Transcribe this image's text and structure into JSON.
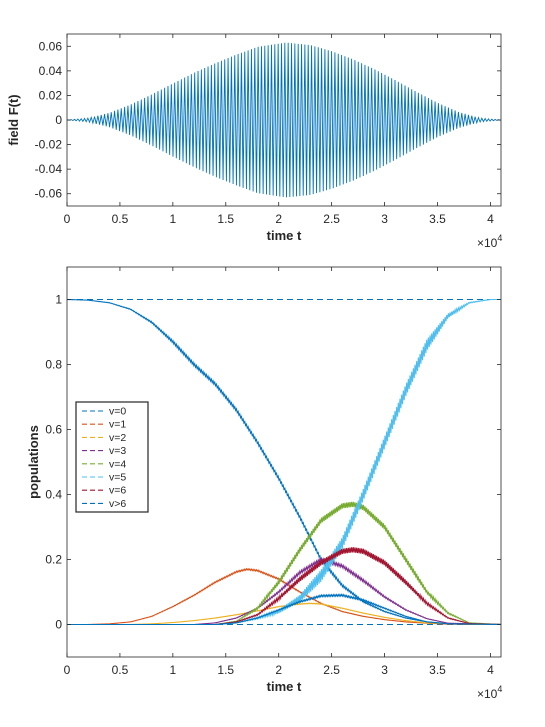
{
  "chart_data": [
    {
      "type": "line",
      "title": "",
      "xlabel": "time t",
      "ylabel": "field F(t)",
      "xlim": [
        0,
        41000
      ],
      "ylim": [
        -0.07,
        0.07
      ],
      "x_ticks": [
        0,
        5000,
        10000,
        15000,
        20000,
        25000,
        30000,
        35000,
        40000
      ],
      "x_tick_labels": [
        "0",
        "0.5",
        "1",
        "1.5",
        "2",
        "2.5",
        "3",
        "3.5",
        "4"
      ],
      "x_exponent_base": "×10",
      "x_exponent_power": "4",
      "y_ticks": [
        -0.06,
        -0.04,
        -0.02,
        0,
        0.02,
        0.04,
        0.06
      ],
      "y_tick_labels": [
        "-0.06",
        "-0.04",
        "-0.02",
        "0",
        "0.02",
        "0.04",
        "0.06"
      ],
      "grid": false,
      "series": [
        {
          "color": "#0072BD",
          "style": "solid",
          "oscillation_cycles": 130,
          "envelope_x": [
            0,
            2000,
            4000,
            6000,
            8000,
            10000,
            12000,
            14000,
            16000,
            18000,
            20700,
            23000,
            25000,
            27000,
            29000,
            31000,
            33000,
            35000,
            37000,
            39000,
            41000
          ],
          "envelope_amplitude": [
            0.0,
            0.0015,
            0.0058,
            0.0125,
            0.0208,
            0.0297,
            0.0384,
            0.0462,
            0.0532,
            0.0595,
            0.063,
            0.061,
            0.056,
            0.0495,
            0.0415,
            0.0325,
            0.023,
            0.014,
            0.0065,
            0.0016,
            0.0
          ]
        }
      ]
    },
    {
      "type": "line",
      "title": "",
      "xlabel": "time t",
      "ylabel": "populations",
      "xlim": [
        0,
        41000
      ],
      "ylim": [
        -0.1,
        1.1
      ],
      "x_ticks": [
        0,
        5000,
        10000,
        15000,
        20000,
        25000,
        30000,
        35000,
        40000
      ],
      "x_tick_labels": [
        "0",
        "0.5",
        "1",
        "1.5",
        "2",
        "2.5",
        "3",
        "3.5",
        "4"
      ],
      "x_exponent_base": "×10",
      "x_exponent_power": "4",
      "y_ticks": [
        0,
        0.2,
        0.4,
        0.6,
        0.8,
        1
      ],
      "y_tick_labels": [
        "0",
        "0.2",
        "0.4",
        "0.6",
        "0.8",
        "1"
      ],
      "grid": false,
      "legend": "center-left",
      "series": [
        {
          "name": "v=0",
          "color": "#0072BD",
          "style": "dashed",
          "x": [
            0,
            41000
          ],
          "y": [
            1,
            1
          ]
        },
        {
          "name": "v=1",
          "color": "#D95319",
          "style": "dashed",
          "x": [
            0,
            41000
          ],
          "y": [
            0,
            0
          ]
        },
        {
          "name": "v=2",
          "color": "#EDB120",
          "style": "dashed",
          "x": [
            0,
            41000
          ],
          "y": [
            0,
            0
          ]
        },
        {
          "name": "v=3",
          "color": "#7E2F8E",
          "style": "dashed",
          "x": [
            0,
            41000
          ],
          "y": [
            0,
            0
          ]
        },
        {
          "name": "v=4",
          "color": "#77AC30",
          "style": "dashed",
          "x": [
            0,
            41000
          ],
          "y": [
            0,
            0
          ]
        },
        {
          "name": "v=5",
          "color": "#4DBEEE",
          "style": "dashed",
          "x": [
            0,
            41000
          ],
          "y": [
            0,
            0
          ]
        },
        {
          "name": "v=6",
          "color": "#A2142F",
          "style": "dashed",
          "x": [
            0,
            41000
          ],
          "y": [
            0,
            0
          ]
        },
        {
          "name": "v>6",
          "color": "#0072BD",
          "style": "dashed",
          "x": [
            0,
            41000
          ],
          "y": [
            0,
            0
          ]
        },
        {
          "color": "#0072BD",
          "style": "solid",
          "ripple": 0.004,
          "x": [
            0,
            2000,
            4000,
            6000,
            8000,
            10000,
            12000,
            14000,
            16000,
            18000,
            20000,
            22000,
            24000,
            26000,
            28000,
            30000,
            32000,
            34000,
            36000,
            38000,
            41000
          ],
          "y": [
            1.0,
            0.998,
            0.99,
            0.97,
            0.93,
            0.87,
            0.8,
            0.74,
            0.66,
            0.56,
            0.45,
            0.33,
            0.2,
            0.12,
            0.07,
            0.04,
            0.02,
            0.008,
            0.003,
            0.0,
            0.0
          ]
        },
        {
          "color": "#D95319",
          "style": "solid",
          "ripple": 0.002,
          "x": [
            0,
            2000,
            4000,
            6000,
            8000,
            10000,
            12000,
            14000,
            16000,
            17000,
            18000,
            20000,
            22000,
            24000,
            26000,
            28000,
            30000,
            32000,
            34000,
            36000,
            41000
          ],
          "y": [
            0.0,
            0.0,
            0.002,
            0.008,
            0.025,
            0.055,
            0.09,
            0.13,
            0.162,
            0.17,
            0.166,
            0.14,
            0.1,
            0.065,
            0.04,
            0.025,
            0.015,
            0.008,
            0.004,
            0.001,
            0.0
          ]
        },
        {
          "color": "#EDB120",
          "style": "solid",
          "ripple": 0.002,
          "x": [
            0,
            6000,
            8000,
            10000,
            12000,
            14000,
            16000,
            18000,
            20000,
            22000,
            23000,
            24000,
            26000,
            28000,
            30000,
            32000,
            34000,
            36000,
            41000
          ],
          "y": [
            0.0,
            0.0,
            0.002,
            0.006,
            0.012,
            0.02,
            0.03,
            0.042,
            0.055,
            0.063,
            0.065,
            0.063,
            0.05,
            0.035,
            0.022,
            0.012,
            0.005,
            0.002,
            0.0
          ]
        },
        {
          "color": "#7E2F8E",
          "style": "solid",
          "ripple": 0.004,
          "x": [
            0,
            12000,
            14000,
            16000,
            18000,
            20000,
            22000,
            24000,
            26000,
            28000,
            30000,
            32000,
            34000,
            36000,
            41000
          ],
          "y": [
            0.0,
            0.0,
            0.005,
            0.02,
            0.05,
            0.1,
            0.16,
            0.2,
            0.18,
            0.135,
            0.085,
            0.045,
            0.018,
            0.004,
            0.0
          ]
        },
        {
          "color": "#77AC30",
          "style": "solid",
          "ripple": 0.008,
          "x": [
            0,
            14000,
            16000,
            18000,
            20000,
            22000,
            24000,
            26000,
            27000,
            28000,
            30000,
            32000,
            34000,
            36000,
            38000,
            41000
          ],
          "y": [
            0.0,
            0.0,
            0.01,
            0.05,
            0.13,
            0.23,
            0.32,
            0.365,
            0.37,
            0.36,
            0.3,
            0.2,
            0.1,
            0.035,
            0.005,
            0.0
          ]
        },
        {
          "color": "#4DBEEE",
          "style": "solid",
          "ripple": 0.018,
          "x": [
            0,
            14000,
            16000,
            18000,
            20000,
            22000,
            24000,
            26000,
            28000,
            30000,
            32000,
            34000,
            36000,
            38000,
            40000,
            41000
          ],
          "y": [
            0.0,
            0.0,
            0.005,
            0.02,
            0.04,
            0.08,
            0.15,
            0.25,
            0.4,
            0.56,
            0.72,
            0.86,
            0.95,
            0.99,
            1.0,
            1.0
          ]
        },
        {
          "color": "#A2142F",
          "style": "solid",
          "ripple": 0.008,
          "x": [
            0,
            14000,
            16000,
            18000,
            20000,
            22000,
            24000,
            26000,
            27000,
            28000,
            30000,
            32000,
            34000,
            36000,
            38000,
            41000
          ],
          "y": [
            0.0,
            0.0,
            0.008,
            0.03,
            0.08,
            0.14,
            0.19,
            0.225,
            0.23,
            0.225,
            0.19,
            0.13,
            0.065,
            0.02,
            0.003,
            0.0
          ]
        },
        {
          "color": "#0072BD",
          "style": "solid",
          "ripple": 0.004,
          "x": [
            0,
            14000,
            16000,
            18000,
            20000,
            22000,
            24000,
            26000,
            28000,
            30000,
            32000,
            34000,
            36000,
            41000
          ],
          "y": [
            0.0,
            0.0,
            0.005,
            0.02,
            0.045,
            0.07,
            0.088,
            0.09,
            0.075,
            0.05,
            0.025,
            0.008,
            0.002,
            0.0
          ]
        }
      ]
    }
  ]
}
